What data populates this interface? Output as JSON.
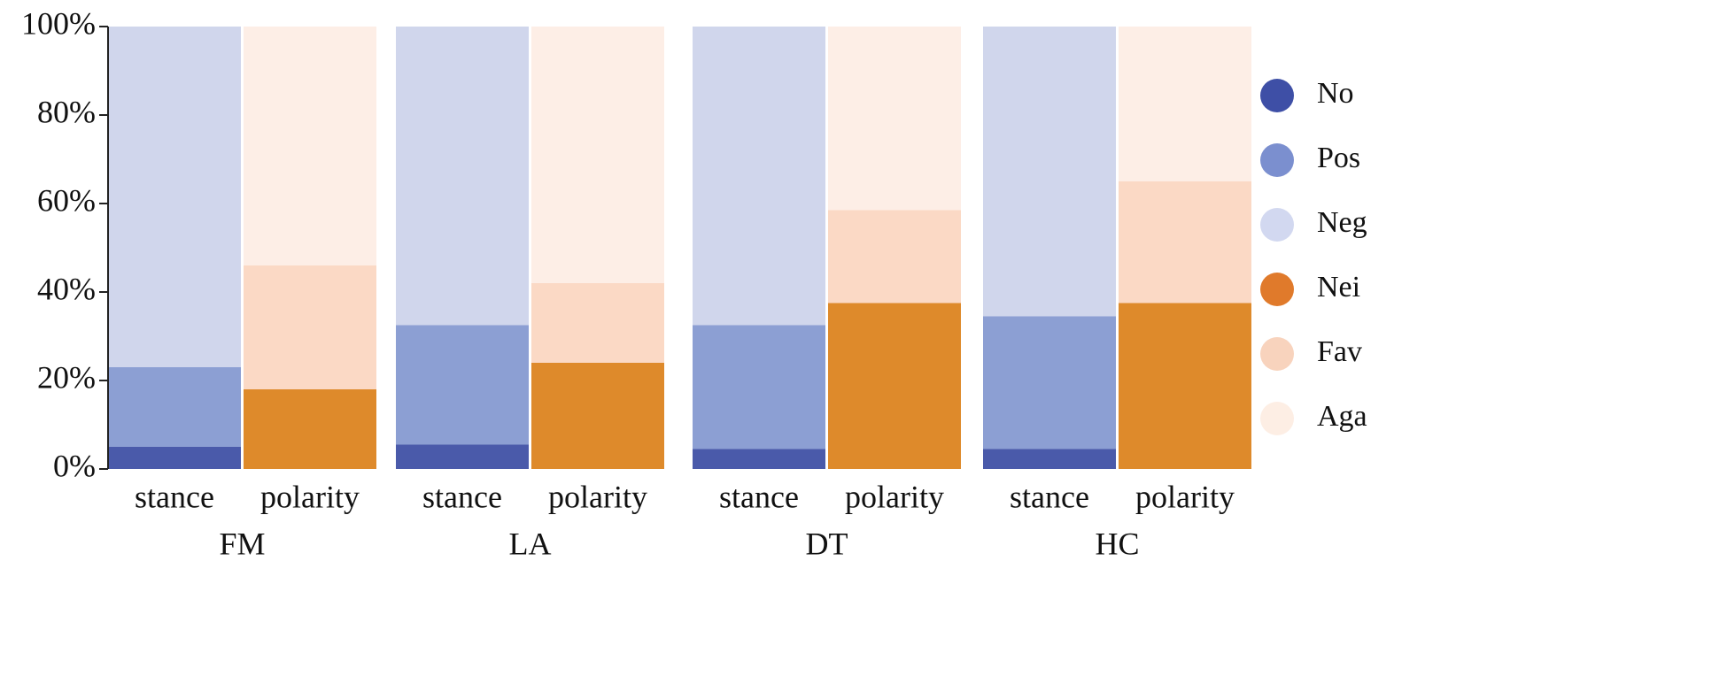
{
  "chart_data": {
    "type": "bar",
    "stacked": true,
    "normalized": true,
    "title": "",
    "xlabel": "",
    "ylabel": "",
    "ylim": [
      0,
      100
    ],
    "y_ticks": [
      {
        "value": 0,
        "label": "0%"
      },
      {
        "value": 20,
        "label": "20%"
      },
      {
        "value": 40,
        "label": "40%"
      },
      {
        "value": 60,
        "label": "60%"
      },
      {
        "value": 80,
        "label": "80%"
      },
      {
        "value": 100,
        "label": "100%"
      }
    ],
    "groups": [
      {
        "name": "FM",
        "bars": [
          {
            "label": "stance",
            "kind": "stance",
            "segments": {
              "No": 5,
              "Pos": 18,
              "Neg": 77
            }
          },
          {
            "label": "polarity",
            "kind": "polarity",
            "segments": {
              "Nei": 18,
              "Fav": 28,
              "Aga": 54
            }
          }
        ]
      },
      {
        "name": "LA",
        "bars": [
          {
            "label": "stance",
            "kind": "stance",
            "segments": {
              "No": 5.5,
              "Pos": 27,
              "Neg": 67.5
            }
          },
          {
            "label": "polarity",
            "kind": "polarity",
            "segments": {
              "Nei": 24,
              "Fav": 18,
              "Aga": 58
            }
          }
        ]
      },
      {
        "name": "DT",
        "bars": [
          {
            "label": "stance",
            "kind": "stance",
            "segments": {
              "No": 4.5,
              "Pos": 28,
              "Neg": 67.5
            }
          },
          {
            "label": "polarity",
            "kind": "polarity",
            "segments": {
              "Nei": 37.5,
              "Fav": 21,
              "Aga": 41.5
            }
          }
        ]
      },
      {
        "name": "HC",
        "bars": [
          {
            "label": "stance",
            "kind": "stance",
            "segments": {
              "No": 4.5,
              "Pos": 30,
              "Neg": 65.5
            }
          },
          {
            "label": "polarity",
            "kind": "polarity",
            "segments": {
              "Nei": 37.5,
              "Fav": 27.5,
              "Aga": 35
            }
          }
        ]
      }
    ],
    "series": [
      {
        "name": "No",
        "color": "#4a5aaa"
      },
      {
        "name": "Pos",
        "color": "#8c9fd3"
      },
      {
        "name": "Neg",
        "color": "#d0d6ec"
      },
      {
        "name": "Nei",
        "color": "#de8a2b"
      },
      {
        "name": "Fav",
        "color": "#fbd9c5"
      },
      {
        "name": "Aga",
        "color": "#fdeee6"
      }
    ],
    "legend": {
      "position": "right",
      "items": [
        {
          "name": "No",
          "color": "#3e4fa6"
        },
        {
          "name": "Pos",
          "color": "#7b8fcf"
        },
        {
          "name": "Neg",
          "color": "#d2d8f0"
        },
        {
          "name": "Nei",
          "color": "#e07a2b"
        },
        {
          "name": "Fav",
          "color": "#f8d3bd"
        },
        {
          "name": "Aga",
          "color": "#fdeee4"
        }
      ]
    },
    "stack_order": {
      "stance": [
        "No",
        "Pos",
        "Neg"
      ],
      "polarity": [
        "Nei",
        "Fav",
        "Aga"
      ]
    }
  }
}
